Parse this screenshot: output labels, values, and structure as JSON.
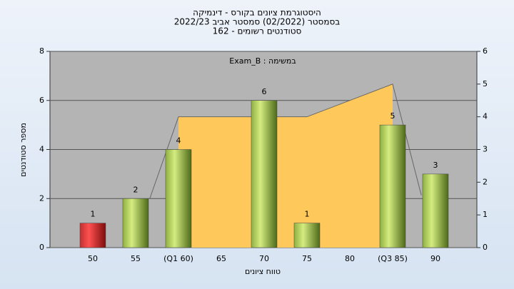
{
  "chart_data": {
    "type": "bar",
    "title_lines": [
      "היסטוגרמת ציונים בקורס - דינמיקה",
      "בסמסטר  (02/2022)  סמסטר אביב 2022/23",
      "סטודנטים רשומים - 162"
    ],
    "annotation": "במשימה : Exam_B",
    "x_label": "טווח ציונים",
    "y_label": "מספר סטודנטים",
    "categories": [
      "50",
      "55",
      "(Q1 60)",
      "65",
      "70",
      "75",
      "80",
      "(Q3 85)",
      "90"
    ],
    "values": [
      1,
      2,
      4,
      null,
      6,
      1,
      null,
      5,
      3
    ],
    "colors": [
      "#e02828",
      "#9cc048",
      "#9cc048",
      "#9cc048",
      "#9cc048",
      "#9cc048",
      "#9cc048",
      "#9cc048",
      "#9cc048"
    ],
    "ylim": [
      0,
      8
    ],
    "yticks": [
      0,
      2,
      4,
      6,
      8
    ],
    "y2lim": [
      0,
      6
    ],
    "y2ticks": [
      0,
      1,
      2,
      3,
      4,
      5,
      6
    ],
    "grid": true,
    "overlay": {
      "type": "area",
      "axis": "y2",
      "x": [
        1.33,
        2,
        5,
        7,
        7.67
      ],
      "values": [
        1.5,
        4,
        4,
        5,
        1.6
      ],
      "color": "#ffc85a"
    }
  }
}
